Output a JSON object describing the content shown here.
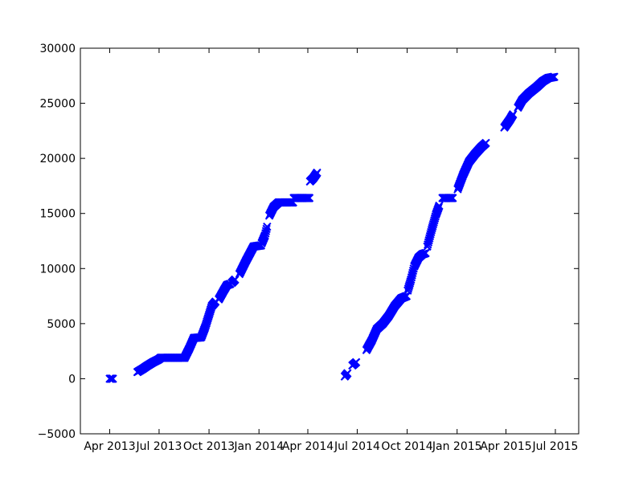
{
  "chart_data": {
    "type": "scatter",
    "title": "",
    "xlabel": "",
    "ylabel": "",
    "x_type": "date",
    "xlim": [
      "2013-02-06",
      "2015-08-13"
    ],
    "ylim": [
      -5000,
      30000
    ],
    "grid": false,
    "legend": "none",
    "marker": "x",
    "marker_color": "#0000ff",
    "xticks": [
      {
        "date": "2013-04-01",
        "label": "Apr 2013"
      },
      {
        "date": "2013-07-01",
        "label": "Jul 2013"
      },
      {
        "date": "2013-10-01",
        "label": "Oct 2013"
      },
      {
        "date": "2014-01-01",
        "label": "Jan 2014"
      },
      {
        "date": "2014-04-01",
        "label": "Apr 2014"
      },
      {
        "date": "2014-07-01",
        "label": "Jul 2014"
      },
      {
        "date": "2014-10-01",
        "label": "Oct 2014"
      },
      {
        "date": "2015-01-01",
        "label": "Jan 2015"
      },
      {
        "date": "2015-04-01",
        "label": "Apr 2015"
      },
      {
        "date": "2015-07-01",
        "label": "Jul 2015"
      }
    ],
    "yticks": [
      {
        "value": -5000,
        "label": "−5000"
      },
      {
        "value": 0,
        "label": "0"
      },
      {
        "value": 5000,
        "label": "5000"
      },
      {
        "value": 10000,
        "label": "10000"
      },
      {
        "value": 15000,
        "label": "15000"
      },
      {
        "value": 20000,
        "label": "20000"
      },
      {
        "value": 25000,
        "label": "25000"
      },
      {
        "value": 30000,
        "label": "30000"
      }
    ],
    "segments": [
      {
        "points": [
          [
            "2013-04-01",
            0
          ],
          [
            "2013-04-07",
            0
          ]
        ]
      },
      {
        "points": [
          [
            "2013-05-22",
            600
          ],
          [
            "2013-06-01",
            900
          ],
          [
            "2013-06-10",
            1200
          ],
          [
            "2013-06-20",
            1500
          ],
          [
            "2013-06-30",
            1750
          ],
          [
            "2013-07-04",
            1900
          ],
          [
            "2013-07-15",
            1900
          ],
          [
            "2013-08-01",
            1900
          ],
          [
            "2013-08-16",
            1900
          ]
        ]
      },
      {
        "points": [
          [
            "2013-08-17",
            1900
          ],
          [
            "2013-08-26",
            2800
          ],
          [
            "2013-09-03",
            3700
          ],
          [
            "2013-09-16",
            3750
          ]
        ]
      },
      {
        "points": [
          [
            "2013-09-17",
            3800
          ],
          [
            "2013-09-24",
            4700
          ],
          [
            "2013-10-01",
            5800
          ],
          [
            "2013-10-06",
            6600
          ],
          [
            "2013-10-13",
            7000
          ]
        ]
      },
      {
        "points": [
          [
            "2013-10-19",
            7200
          ],
          [
            "2013-10-28",
            8000
          ],
          [
            "2013-11-03",
            8500
          ],
          [
            "2013-11-09",
            8600
          ]
        ]
      },
      {
        "points": [
          [
            "2013-11-12",
            8700
          ],
          [
            "2013-11-18",
            9000
          ]
        ]
      },
      {
        "points": [
          [
            "2013-11-26",
            9500
          ],
          [
            "2013-12-08",
            10700
          ],
          [
            "2013-12-22",
            12000
          ],
          [
            "2014-01-05",
            12100
          ]
        ]
      },
      {
        "points": [
          [
            "2014-01-06",
            12300
          ],
          [
            "2014-01-12",
            13000
          ],
          [
            "2014-01-16",
            13800
          ]
        ]
      },
      {
        "points": [
          [
            "2014-01-20",
            14800
          ],
          [
            "2014-01-28",
            15600
          ],
          [
            "2014-02-06",
            16000
          ],
          [
            "2014-02-20",
            16000
          ],
          [
            "2014-03-05",
            16000
          ]
        ]
      },
      {
        "points": [
          [
            "2014-03-06",
            16400
          ],
          [
            "2014-03-20",
            16400
          ],
          [
            "2014-04-04",
            16400
          ]
        ]
      },
      {
        "points": [
          [
            "2014-04-05",
            17900
          ],
          [
            "2014-04-11",
            18200
          ],
          [
            "2014-04-18",
            18700
          ]
        ]
      },
      {
        "points": [
          [
            "2014-06-08",
            200
          ],
          [
            "2014-06-13",
            500
          ]
        ]
      },
      {
        "points": [
          [
            "2014-06-22",
            1200
          ],
          [
            "2014-06-29",
            1500
          ]
        ]
      },
      {
        "points": [
          [
            "2014-07-18",
            2600
          ],
          [
            "2014-07-28",
            3500
          ],
          [
            "2014-08-06",
            4500
          ],
          [
            "2014-08-17",
            5000
          ],
          [
            "2014-08-28",
            5700
          ],
          [
            "2014-09-08",
            6600
          ],
          [
            "2014-09-20",
            7300
          ],
          [
            "2014-09-30",
            7500
          ]
        ]
      },
      {
        "points": [
          [
            "2014-10-02",
            8000
          ],
          [
            "2014-10-08",
            9000
          ],
          [
            "2014-10-14",
            10200
          ],
          [
            "2014-10-22",
            11000
          ],
          [
            "2014-10-29",
            11300
          ],
          [
            "2014-11-04",
            11400
          ]
        ]
      },
      {
        "points": [
          [
            "2014-11-07",
            12000
          ],
          [
            "2014-11-15",
            13500
          ],
          [
            "2014-11-23",
            14900
          ],
          [
            "2014-11-29",
            15700
          ]
        ]
      },
      {
        "points": [
          [
            "2014-12-05",
            16400
          ],
          [
            "2014-12-15",
            16400
          ],
          [
            "2014-12-24",
            16400
          ]
        ]
      },
      {
        "points": [
          [
            "2015-01-02",
            17200
          ],
          [
            "2015-01-12",
            18500
          ],
          [
            "2015-01-23",
            19700
          ],
          [
            "2015-02-03",
            20400
          ],
          [
            "2015-02-14",
            21000
          ],
          [
            "2015-02-23",
            21400
          ]
        ]
      },
      {
        "points": [
          [
            "2015-03-29",
            22800
          ],
          [
            "2015-04-08",
            23500
          ],
          [
            "2015-04-14",
            24000
          ]
        ]
      },
      {
        "points": [
          [
            "2015-04-23",
            24600
          ],
          [
            "2015-05-01",
            25300
          ],
          [
            "2015-05-13",
            25900
          ],
          [
            "2015-05-28",
            26500
          ],
          [
            "2015-06-08",
            27000
          ],
          [
            "2015-06-18",
            27300
          ],
          [
            "2015-06-29",
            27400
          ]
        ]
      }
    ]
  }
}
